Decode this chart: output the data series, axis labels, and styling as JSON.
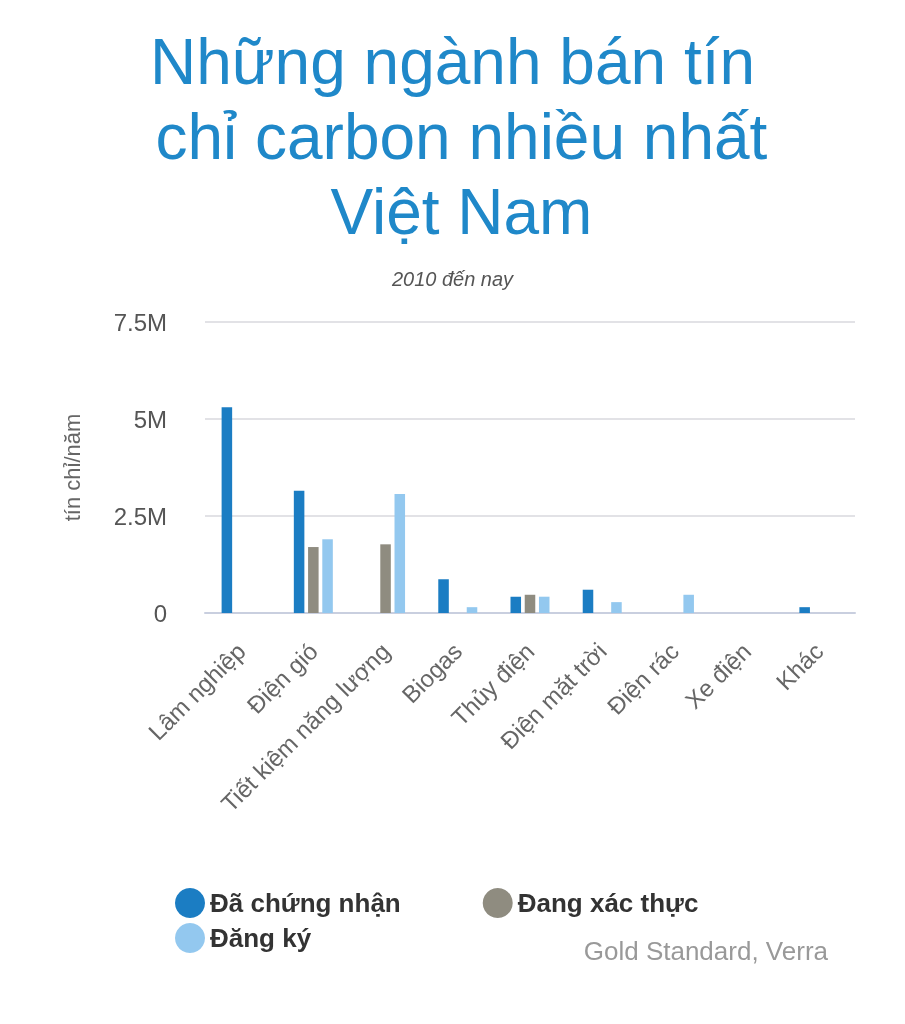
{
  "chart_data": {
    "type": "bar",
    "title": "Những ngành bán tín chỉ carbon nhiều nhất Việt Nam",
    "subtitle": "2010 đến nay",
    "ylabel": "tín chỉ/năm",
    "categories": [
      "Lâm nghiệp",
      "Điện gió",
      "Tiết kiệm năng lượng",
      "Biogas",
      "Thủy điện",
      "Điện mặt trời",
      "Điện rác",
      "Xe điện",
      "Khác"
    ],
    "series": [
      {
        "name": "Đã chứng nhận",
        "color": "#1b7dc3",
        "values": [
          5300000,
          3150000,
          null,
          870000,
          420000,
          600000,
          null,
          null,
          150000
        ]
      },
      {
        "name": "Đang xác thực",
        "color": "#8f8c80",
        "values": [
          null,
          1700000,
          1770000,
          null,
          470000,
          null,
          null,
          null,
          null
        ]
      },
      {
        "name": "Đăng ký",
        "color": "#93c8ef",
        "values": [
          null,
          1900000,
          3070000,
          150000,
          420000,
          280000,
          470000,
          null,
          null
        ]
      }
    ],
    "ylim": [
      0,
      7500000
    ],
    "yticks": [
      0,
      {
        "value": 2500000,
        "label": "2.5M"
      },
      {
        "value": 5000000,
        "label": "5M"
      },
      {
        "value": 7500000,
        "label": "7.5M"
      }
    ],
    "grid": "y",
    "legend": "bottom",
    "annotations": [
      "Gold Standard, Verra"
    ]
  }
}
